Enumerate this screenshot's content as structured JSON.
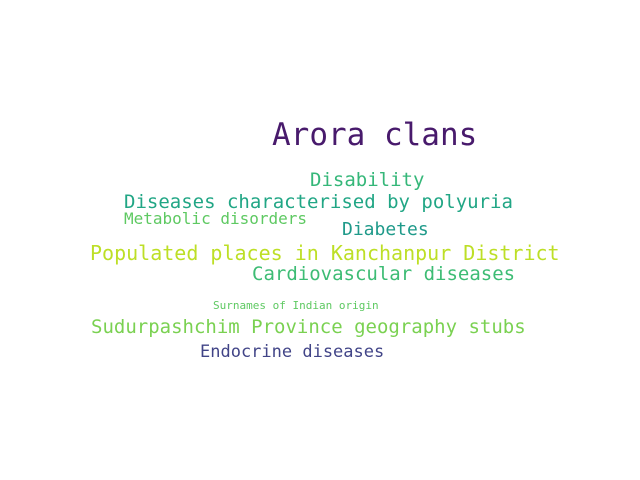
{
  "words": [
    {
      "text": "Arora clans",
      "color": "#481a6c"
    },
    {
      "text": "Disability",
      "color": "#35b779"
    },
    {
      "text": "Diseases characterised by polyuria",
      "color": "#21a685"
    },
    {
      "text": "Metabolic disorders",
      "color": "#5ec962"
    },
    {
      "text": "Diabetes",
      "color": "#1f9a8a"
    },
    {
      "text": "Populated places in Kanchanpur District",
      "color": "#bddf26"
    },
    {
      "text": "Cardiovascular diseases",
      "color": "#3dbc74"
    },
    {
      "text": "Surnames of Indian origin",
      "color": "#5ec962"
    },
    {
      "text": "Sudurpashchim Province geography stubs",
      "color": "#7ad151"
    },
    {
      "text": "Endocrine diseases",
      "color": "#414487"
    }
  ]
}
